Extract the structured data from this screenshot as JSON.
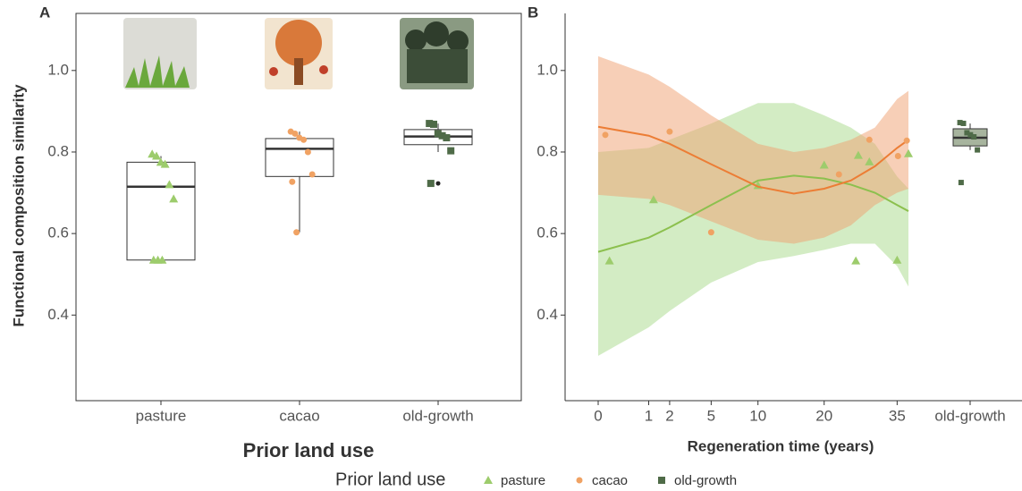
{
  "chart_data": [
    {
      "type": "box",
      "panel_label": "A",
      "ylabel": "Functional composition similarity",
      "xlabel": "Prior land use",
      "legend_title": "Prior land use",
      "categories": [
        "pasture",
        "cacao",
        "old-growth"
      ],
      "colors": [
        "#9dcc6c",
        "#f0a263",
        "#4f6b48"
      ],
      "markers": [
        "triangle",
        "circle",
        "square"
      ],
      "box_fill": "#ffffff",
      "boxes": [
        {
          "q1": 0.535,
          "median": 0.715,
          "q3": 0.775,
          "whisker_low": 0.535,
          "whisker_high": 0.79,
          "outliers": []
        },
        {
          "q1": 0.74,
          "median": 0.808,
          "q3": 0.833,
          "whisker_low": 0.603,
          "whisker_high": 0.85,
          "outliers": []
        },
        {
          "q1": 0.818,
          "median": 0.838,
          "q3": 0.855,
          "whisker_low": 0.8,
          "whisker_high": 0.87,
          "outliers": [
            0.723
          ]
        }
      ],
      "points": [
        [
          0.795,
          0.79,
          0.775,
          0.77,
          0.72,
          0.685,
          0.535,
          0.535,
          0.535
        ],
        [
          0.85,
          0.845,
          0.835,
          0.83,
          0.8,
          0.745,
          0.727,
          0.603
        ],
        [
          0.87,
          0.868,
          0.845,
          0.84,
          0.835,
          0.803,
          0.723
        ]
      ],
      "ylim": [
        0.19,
        1.14
      ],
      "yticks": [
        0.4,
        0.6,
        0.8,
        {
          "value": 1,
          "label": "1.0"
        }
      ]
    },
    {
      "type": "line",
      "panel_label": "B",
      "xlabel": "Regeneration time (years)",
      "x_scale": "sqrt",
      "xlim": [
        0,
        37.7
      ],
      "xticks": [
        0,
        1,
        2,
        5,
        10,
        20,
        35
      ],
      "ylim": [
        0.19,
        1.14
      ],
      "yticks": [
        0.4,
        0.6,
        0.8,
        {
          "value": 1,
          "label": "1.0"
        }
      ],
      "series": [
        {
          "color": "#8cc04e",
          "band_color": "#a8d98a",
          "marker": "triangle",
          "point_color": "#9dcc6c",
          "x": [
            0,
            1,
            2,
            5,
            10,
            15,
            20,
            25,
            30,
            35,
            37.7
          ],
          "values": [
            0.555,
            0.59,
            0.615,
            0.67,
            0.73,
            0.742,
            0.735,
            0.72,
            0.7,
            0.67,
            0.655
          ],
          "lower": [
            0.3,
            0.37,
            0.41,
            0.48,
            0.53,
            0.545,
            0.56,
            0.575,
            0.575,
            0.52,
            0.47
          ],
          "upper": [
            0.8,
            0.81,
            0.83,
            0.87,
            0.92,
            0.92,
            0.89,
            0.86,
            0.82,
            0.74,
            0.71
          ],
          "points_x": [
            0.05,
            1.2,
            10,
            20,
            26,
            26.5,
            28.8,
            35,
            37.7
          ],
          "points_y": [
            0.533,
            0.683,
            0.718,
            0.768,
            0.533,
            0.792,
            0.776,
            0.535,
            0.796
          ]
        },
        {
          "color": "#ec7d35",
          "band_color": "#f0a070",
          "marker": "circle",
          "point_color": "#f0a263",
          "x": [
            0,
            1,
            2,
            5,
            10,
            15,
            20,
            25,
            30,
            35,
            37.7
          ],
          "values": [
            0.862,
            0.84,
            0.82,
            0.77,
            0.715,
            0.698,
            0.71,
            0.73,
            0.765,
            0.81,
            0.83
          ],
          "lower": [
            0.695,
            0.685,
            0.67,
            0.63,
            0.585,
            0.575,
            0.59,
            0.62,
            0.67,
            0.7,
            0.71
          ],
          "upper": [
            1.035,
            0.99,
            0.96,
            0.89,
            0.82,
            0.8,
            0.81,
            0.83,
            0.86,
            0.93,
            0.95
          ],
          "points_x": [
            0.02,
            2,
            5,
            22.7,
            28.8,
            35.2,
            37.3
          ],
          "points_y": [
            0.842,
            0.85,
            0.603,
            0.745,
            0.83,
            0.79,
            0.828
          ]
        }
      ],
      "x_categories": [
        "old-growth"
      ],
      "box": {
        "q1": 0.815,
        "median": 0.835,
        "q3": 0.857,
        "whisker_low": 0.805,
        "whisker_high": 0.87
      },
      "box_fill": "#a7b49e",
      "box_point_color": "#4f6b48",
      "box_points": [
        0.87,
        0.868,
        0.845,
        0.84,
        0.835,
        0.803,
        0.723
      ]
    }
  ]
}
